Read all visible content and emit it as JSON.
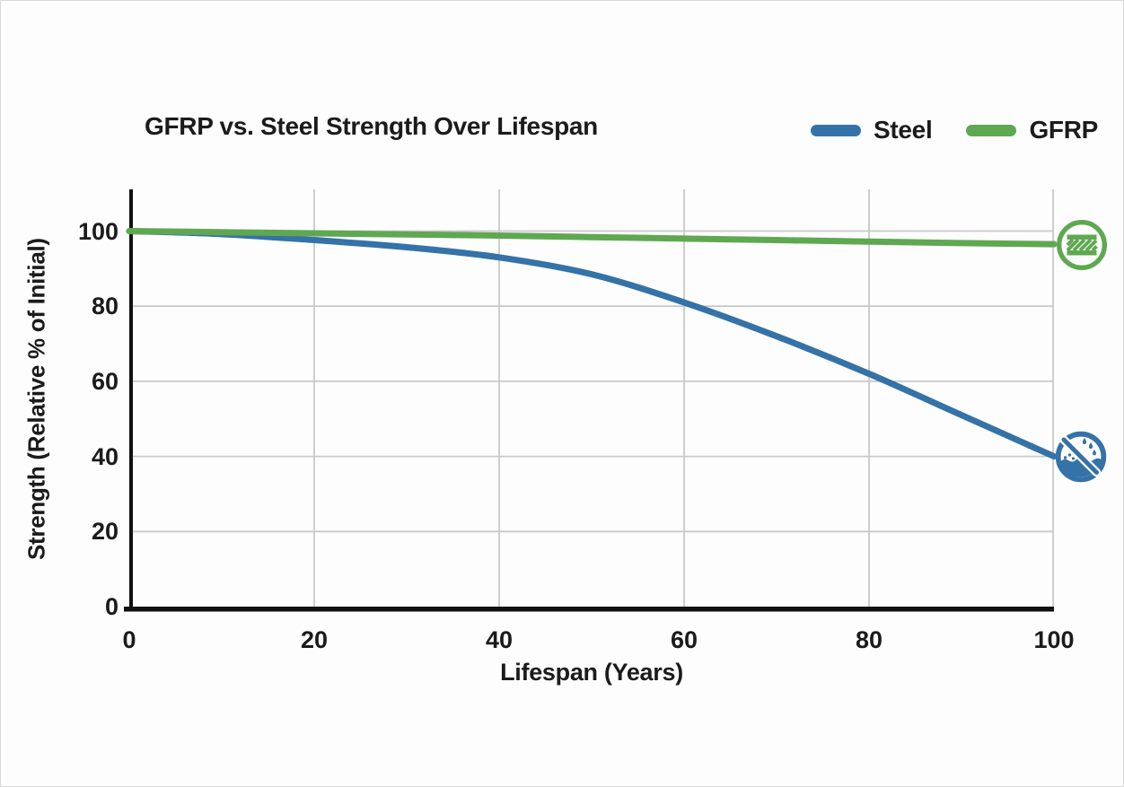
{
  "header": {
    "title": "GFRP vs. Steel Strength Over Lifespan"
  },
  "legend": {
    "items": [
      {
        "label": "Steel",
        "color": "#3472a7"
      },
      {
        "label": "GFRP",
        "color": "#5fa851"
      }
    ]
  },
  "chart_data": {
    "type": "line",
    "title": "GFRP vs. Steel Strength Over Lifespan",
    "xlabel": "Lifespan (Years)",
    "ylabel": "Strength (Relative % of Initial)",
    "x": [
      0,
      10,
      20,
      30,
      40,
      50,
      60,
      70,
      80,
      90,
      100
    ],
    "series": [
      {
        "name": "Steel",
        "color": "#3472a7",
        "values": [
          100,
          99.2,
          97.6,
          95.7,
          93,
          88.5,
          81,
          72,
          62,
          51,
          40
        ]
      },
      {
        "name": "GFRP",
        "color": "#5fa851",
        "values": [
          100,
          99.7,
          99.4,
          99.1,
          98.8,
          98.4,
          98,
          97.6,
          97.2,
          96.8,
          96.5
        ]
      }
    ],
    "xticks": [
      "0",
      "20",
      "40",
      "60",
      "80",
      "100"
    ],
    "yticks": [
      "0",
      "20",
      "40",
      "60",
      "80",
      "100"
    ],
    "xlim": [
      0,
      100
    ],
    "ylim": [
      0,
      100
    ],
    "grid": true,
    "legend_position": "top-right",
    "annotations": [
      {
        "icon": "gfrp-durability-icon",
        "series": "GFRP",
        "x": 100,
        "color": "#5fa851"
      },
      {
        "icon": "steel-corrosion-icon",
        "series": "Steel",
        "x": 100,
        "color": "#3472a7"
      }
    ]
  },
  "colors": {
    "axis": "#111111",
    "grid": "#c9c9c9",
    "text": "#1b1b1b",
    "background": "#fdfdfd"
  }
}
